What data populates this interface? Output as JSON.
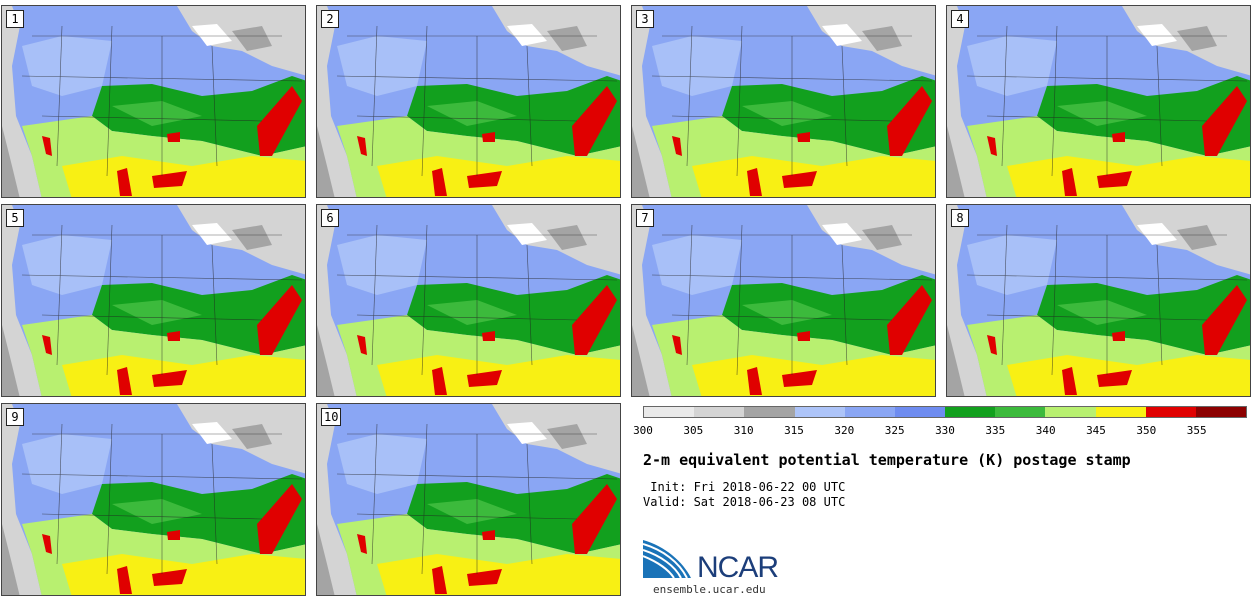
{
  "panels": [
    {
      "label": "1"
    },
    {
      "label": "2"
    },
    {
      "label": "3"
    },
    {
      "label": "4"
    },
    {
      "label": "5"
    },
    {
      "label": "6"
    },
    {
      "label": "7"
    },
    {
      "label": "8"
    },
    {
      "label": "9"
    },
    {
      "label": "10"
    }
  ],
  "colorbar": {
    "colors": [
      "#eaeaea",
      "#d4d4d4",
      "#a4a4a4",
      "#adc4f8",
      "#8aa6f4",
      "#6e8cf0",
      "#12a01e",
      "#3cba3c",
      "#b8f070",
      "#f8f014",
      "#e00000",
      "#8c0000"
    ],
    "ticks": [
      "300",
      "305",
      "310",
      "315",
      "320",
      "325",
      "330",
      "335",
      "340",
      "345",
      "350",
      "355"
    ]
  },
  "title": "2-m equivalent potential temperature (K) postage stamp",
  "init": " Init: Fri 2018-06-22 00 UTC",
  "valid": "Valid: Sat 2018-06-23 08 UTC",
  "logo_text": "NCAR",
  "url": "ensemble.ucar.edu"
}
